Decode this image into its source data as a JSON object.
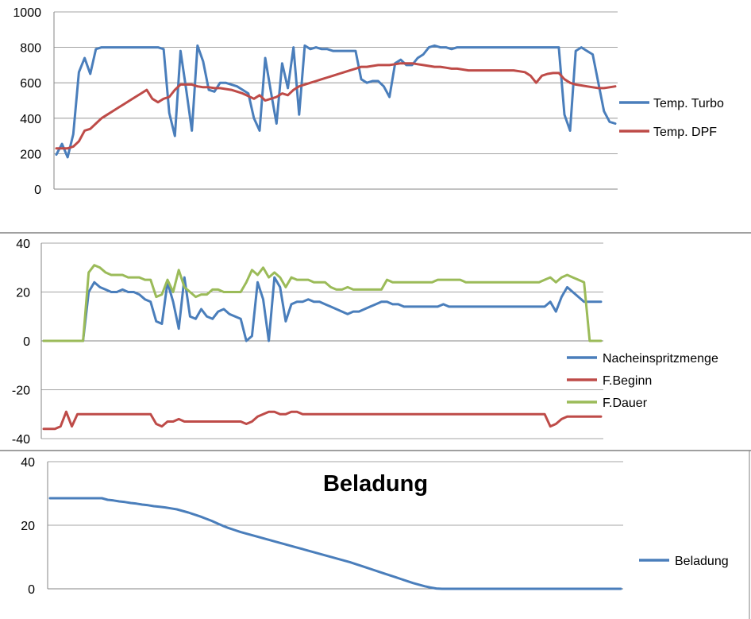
{
  "chart_data": [
    {
      "type": "line",
      "title": "",
      "ylim": [
        0,
        1000
      ],
      "yticks": [
        0,
        200,
        400,
        600,
        800,
        1000
      ],
      "x_count": 100,
      "legend_position": "right",
      "grid": "horizontal",
      "series": [
        {
          "name": "Temp. Turbo",
          "color": "#4a7ebb",
          "values": [
            195,
            255,
            180,
            310,
            660,
            740,
            650,
            790,
            800,
            800,
            800,
            800,
            800,
            800,
            800,
            800,
            800,
            800,
            800,
            790,
            430,
            300,
            780,
            560,
            330,
            810,
            720,
            560,
            550,
            600,
            600,
            590,
            580,
            560,
            540,
            400,
            330,
            740,
            550,
            370,
            710,
            570,
            800,
            420,
            810,
            790,
            800,
            790,
            790,
            780,
            780,
            780,
            780,
            780,
            620,
            600,
            610,
            610,
            580,
            520,
            710,
            730,
            700,
            700,
            740,
            760,
            800,
            810,
            800,
            800,
            790,
            800,
            800,
            800,
            800,
            800,
            800,
            800,
            800,
            800,
            800,
            800,
            800,
            800,
            800,
            800,
            800,
            800,
            800,
            800,
            420,
            330,
            780,
            800,
            780,
            760,
            600,
            440,
            380,
            370
          ]
        },
        {
          "name": "Temp. DPF",
          "color": "#be4b48",
          "values": [
            230,
            230,
            230,
            240,
            270,
            330,
            340,
            370,
            400,
            420,
            440,
            460,
            480,
            500,
            520,
            540,
            560,
            510,
            490,
            510,
            520,
            560,
            590,
            590,
            590,
            580,
            575,
            575,
            570,
            570,
            565,
            560,
            550,
            540,
            525,
            510,
            530,
            500,
            510,
            520,
            540,
            530,
            560,
            580,
            590,
            600,
            610,
            620,
            630,
            640,
            650,
            660,
            670,
            680,
            690,
            690,
            695,
            700,
            700,
            700,
            705,
            710,
            710,
            710,
            705,
            700,
            695,
            690,
            690,
            685,
            680,
            680,
            675,
            670,
            670,
            670,
            670,
            670,
            670,
            670,
            670,
            670,
            665,
            660,
            640,
            600,
            640,
            650,
            655,
            655,
            620,
            600,
            590,
            585,
            580,
            575,
            570,
            570,
            575,
            580
          ]
        }
      ]
    },
    {
      "type": "line",
      "title": "",
      "ylim": [
        -40,
        40
      ],
      "yticks": [
        -40,
        -20,
        0,
        20,
        40
      ],
      "x_count": 100,
      "legend_position": "right",
      "grid": "horizontal",
      "series": [
        {
          "name": "Nacheinspritzmenge",
          "color": "#4a7ebb",
          "values": [
            0,
            0,
            0,
            0,
            0,
            0,
            0,
            0,
            20,
            24,
            22,
            21,
            20,
            20,
            21,
            20,
            20,
            19,
            17,
            16,
            8,
            7,
            24,
            16,
            5,
            26,
            10,
            9,
            13,
            10,
            9,
            12,
            13,
            11,
            10,
            9,
            0,
            2,
            24,
            17,
            0,
            26,
            22,
            8,
            15,
            16,
            16,
            17,
            16,
            16,
            15,
            14,
            13,
            12,
            11,
            12,
            12,
            13,
            14,
            15,
            16,
            16,
            15,
            15,
            14,
            14,
            14,
            14,
            14,
            14,
            14,
            15,
            14,
            14,
            14,
            14,
            14,
            14,
            14,
            14,
            14,
            14,
            14,
            14,
            14,
            14,
            14,
            14,
            14,
            14,
            16,
            12,
            18,
            22,
            20,
            18,
            16,
            16,
            16,
            16
          ]
        },
        {
          "name": "F.Beginn",
          "color": "#be4b48",
          "values": [
            -36,
            -36,
            -36,
            -35,
            -29,
            -35,
            -30,
            -30,
            -30,
            -30,
            -30,
            -30,
            -30,
            -30,
            -30,
            -30,
            -30,
            -30,
            -30,
            -30,
            -34,
            -35,
            -33,
            -33,
            -32,
            -33,
            -33,
            -33,
            -33,
            -33,
            -33,
            -33,
            -33,
            -33,
            -33,
            -33,
            -34,
            -33,
            -31,
            -30,
            -29,
            -29,
            -30,
            -30,
            -29,
            -29,
            -30,
            -30,
            -30,
            -30,
            -30,
            -30,
            -30,
            -30,
            -30,
            -30,
            -30,
            -30,
            -30,
            -30,
            -30,
            -30,
            -30,
            -30,
            -30,
            -30,
            -30,
            -30,
            -30,
            -30,
            -30,
            -30,
            -30,
            -30,
            -30,
            -30,
            -30,
            -30,
            -30,
            -30,
            -30,
            -30,
            -30,
            -30,
            -30,
            -30,
            -30,
            -30,
            -30,
            -30,
            -35,
            -34,
            -32,
            -31,
            -31,
            -31,
            -31,
            -31,
            -31,
            -31
          ]
        },
        {
          "name": "F.Dauer",
          "color": "#9bbb59",
          "values": [
            0,
            0,
            0,
            0,
            0,
            0,
            0,
            0,
            28,
            31,
            30,
            28,
            27,
            27,
            27,
            26,
            26,
            26,
            25,
            25,
            18,
            19,
            25,
            20,
            29,
            22,
            20,
            18,
            19,
            19,
            21,
            21,
            20,
            20,
            20,
            20,
            24,
            29,
            27,
            30,
            26,
            28,
            26,
            22,
            26,
            25,
            25,
            25,
            24,
            24,
            24,
            22,
            21,
            21,
            22,
            21,
            21,
            21,
            21,
            21,
            21,
            25,
            24,
            24,
            24,
            24,
            24,
            24,
            24,
            24,
            25,
            25,
            25,
            25,
            25,
            24,
            24,
            24,
            24,
            24,
            24,
            24,
            24,
            24,
            24,
            24,
            24,
            24,
            24,
            25,
            26,
            24,
            26,
            27,
            26,
            25,
            24,
            0,
            0,
            0
          ]
        }
      ]
    },
    {
      "type": "line",
      "title": "Beladung",
      "ylim": [
        0,
        40
      ],
      "yticks": [
        0,
        20,
        40
      ],
      "x_count": 100,
      "legend_position": "right",
      "grid": "horizontal",
      "series": [
        {
          "name": "Beladung",
          "color": "#4a7ebb",
          "values": [
            28.5,
            28.5,
            28.5,
            28.5,
            28.5,
            28.5,
            28.5,
            28.5,
            28.5,
            28.5,
            28.0,
            27.8,
            27.5,
            27.3,
            27.0,
            26.8,
            26.5,
            26.3,
            26.0,
            25.8,
            25.6,
            25.3,
            25.0,
            24.5,
            24.0,
            23.4,
            22.8,
            22.1,
            21.4,
            20.6,
            19.8,
            19.1,
            18.5,
            17.9,
            17.4,
            16.9,
            16.4,
            15.9,
            15.4,
            14.9,
            14.4,
            13.9,
            13.4,
            12.9,
            12.4,
            11.9,
            11.4,
            10.9,
            10.4,
            9.9,
            9.4,
            8.9,
            8.4,
            7.8,
            7.2,
            6.6,
            6.0,
            5.4,
            4.8,
            4.2,
            3.6,
            3.0,
            2.4,
            1.8,
            1.3,
            0.8,
            0.4,
            0.1,
            0,
            0,
            0,
            0,
            0,
            0,
            0,
            0,
            0,
            0,
            0,
            0,
            0,
            0,
            0,
            0,
            0,
            0,
            0,
            0,
            0,
            0,
            0,
            0,
            0,
            0,
            0,
            0,
            0,
            0,
            0,
            0
          ]
        }
      ]
    }
  ]
}
